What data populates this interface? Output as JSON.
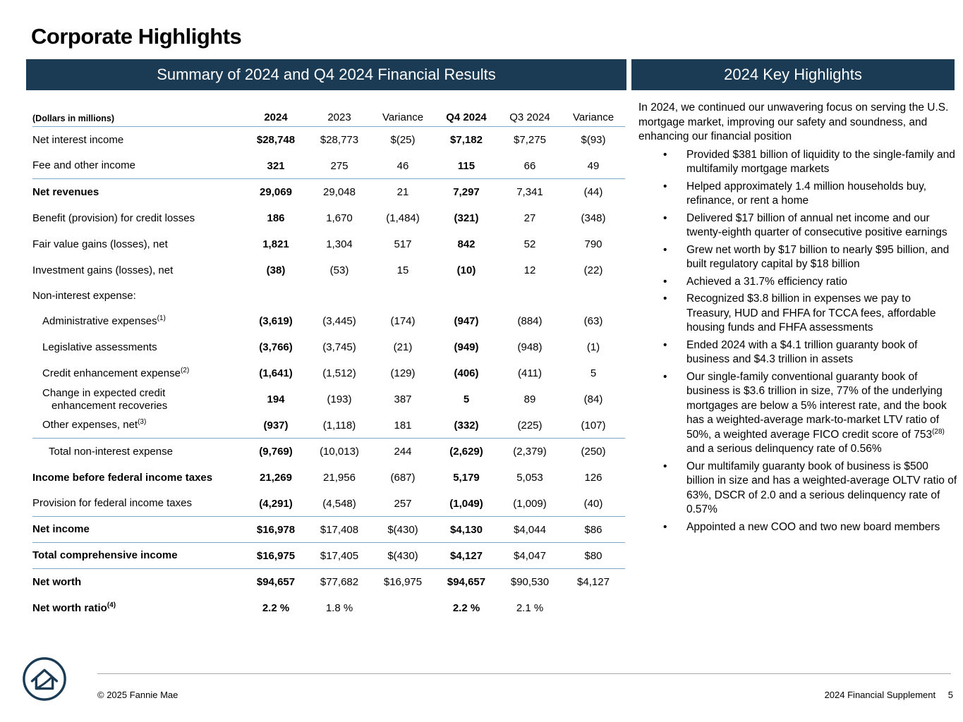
{
  "page": {
    "title": "Corporate Highlights",
    "footer_left": "© 2025 Fannie Mae",
    "footer_right": "2024 Financial Supplement",
    "page_number": "5"
  },
  "colors": {
    "header_bg": "#1B3B54",
    "rule": "#7FA6C5"
  },
  "left_panel": {
    "header": "Summary of 2024 and Q4 2024 Financial Results",
    "table": {
      "unit_label": "(Dollars in millions)",
      "columns": [
        {
          "label": "2024",
          "bold": true
        },
        {
          "label": "2023"
        },
        {
          "label": "Variance"
        },
        {
          "label": "Q4 2024",
          "bold": true
        },
        {
          "label": "Q3 2024"
        },
        {
          "label": "Variance"
        }
      ],
      "rows": [
        {
          "label": "Net interest income",
          "values": [
            "$28,748",
            "$28,773",
            "$(25)",
            "$7,182",
            "$7,275",
            "$(93)"
          ]
        },
        {
          "label": "Fee and other income",
          "values": [
            "321",
            "275",
            "46",
            "115",
            "66",
            "49"
          ],
          "rule": true
        },
        {
          "label": "Net revenues",
          "bold": true,
          "values": [
            "29,069",
            "29,048",
            "21",
            "7,297",
            "7,341",
            "(44)"
          ]
        },
        {
          "label": "Benefit (provision) for credit losses",
          "values": [
            "186",
            "1,670",
            "(1,484)",
            "(321)",
            "27",
            "(348)"
          ]
        },
        {
          "label": "Fair value gains (losses), net",
          "values": [
            "1,821",
            "1,304",
            "517",
            "842",
            "52",
            "790"
          ]
        },
        {
          "label": "Investment gains (losses), net",
          "values": [
            "(38)",
            "(53)",
            "15",
            "(10)",
            "12",
            "(22)"
          ]
        },
        {
          "label": "Non-interest expense:",
          "section": true
        },
        {
          "label": "Administrative expenses",
          "sup": "(1)",
          "indent": 1,
          "values": [
            "(3,619)",
            "(3,445)",
            "(174)",
            "(947)",
            "(884)",
            "(63)"
          ]
        },
        {
          "label": "Legislative assessments",
          "indent": 1,
          "values": [
            "(3,766)",
            "(3,745)",
            "(21)",
            "(949)",
            "(948)",
            "(1)"
          ]
        },
        {
          "label": "Credit enhancement expense",
          "sup": "(2)",
          "indent": 1,
          "values": [
            "(1,641)",
            "(1,512)",
            "(129)",
            "(406)",
            "(411)",
            "5"
          ]
        },
        {
          "label": "Change in expected credit",
          "label2": "enhancement recoveries",
          "indent": 1,
          "values": [
            "194",
            "(193)",
            "387",
            "5",
            "89",
            "(84)"
          ]
        },
        {
          "label": "Other expenses, net",
          "sup": "(3)",
          "indent": 1,
          "values": [
            "(937)",
            "(1,118)",
            "181",
            "(332)",
            "(225)",
            "(107)"
          ],
          "rule": true
        },
        {
          "label": "Total non-interest expense",
          "indent": 2,
          "values": [
            "(9,769)",
            "(10,013)",
            "244",
            "(2,629)",
            "(2,379)",
            "(250)"
          ]
        },
        {
          "label": "Income before federal income taxes",
          "bold": true,
          "values": [
            "21,269",
            "21,956",
            "(687)",
            "5,179",
            "5,053",
            "126"
          ]
        },
        {
          "label": "Provision for federal income taxes",
          "values": [
            "(4,291)",
            "(4,548)",
            "257",
            "(1,049)",
            "(1,009)",
            "(40)"
          ],
          "rule": true
        },
        {
          "label": "Net income",
          "bold": true,
          "values": [
            "$16,978",
            "$17,408",
            "$(430)",
            "$4,130",
            "$4,044",
            "$86"
          ],
          "rule": true
        },
        {
          "label": "Total comprehensive income",
          "bold": true,
          "values": [
            "$16,975",
            "$17,405",
            "$(430)",
            "$4,127",
            "$4,047",
            "$80"
          ],
          "rule": true
        },
        {
          "label": "Net worth",
          "bold": true,
          "values": [
            "$94,657",
            "$77,682",
            "$16,975",
            "$94,657",
            "$90,530",
            "$4,127"
          ]
        },
        {
          "label": "Net worth ratio",
          "sup": "(4)",
          "bold": true,
          "values": [
            "2.2 %",
            "1.8 %",
            "",
            "2.2 %",
            "2.1 %",
            ""
          ]
        }
      ]
    }
  },
  "right_panel": {
    "header": "2024 Key Highlights",
    "intro": "In 2024, we continued our unwavering focus on serving the U.S. mortgage market, improving our safety and soundness, and enhancing our financial position",
    "bullets": [
      "Provided $381 billion of liquidity to the single-family and multifamily mortgage markets",
      "Helped approximately 1.4 million households buy, refinance, or rent a home",
      "Delivered $17 billion of annual net income and our twenty-eighth quarter of consecutive positive earnings",
      "Grew net worth by $17 billion to nearly $95 billion, and built regulatory capital by $18 billion",
      "Achieved a 31.7% efficiency ratio",
      "Recognized $3.8 billion in expenses we pay to Treasury, HUD and FHFA for TCCA fees, affordable housing funds and FHFA assessments",
      "Ended 2024 with a $4.1 trillion guaranty book of business and $4.3 trillion in assets",
      [
        "Our single-family conventional guaranty book of business is $3.6 trillion in size, 77% of the underlying mortgages are below a 5% interest rate, and the book has a weighted-average mark-to-market LTV ratio of 50%, a weighted average FICO credit score of 753",
        {
          "sup": "(28)"
        },
        " and a serious delinquency rate of 0.56%"
      ],
      "Our multifamily guaranty book of business is $500 billion in size and has a weighted-average OLTV ratio of 63%, DSCR of 2.0 and a serious delinquency rate of 0.57%",
      "Appointed a new COO and two new board members"
    ]
  }
}
